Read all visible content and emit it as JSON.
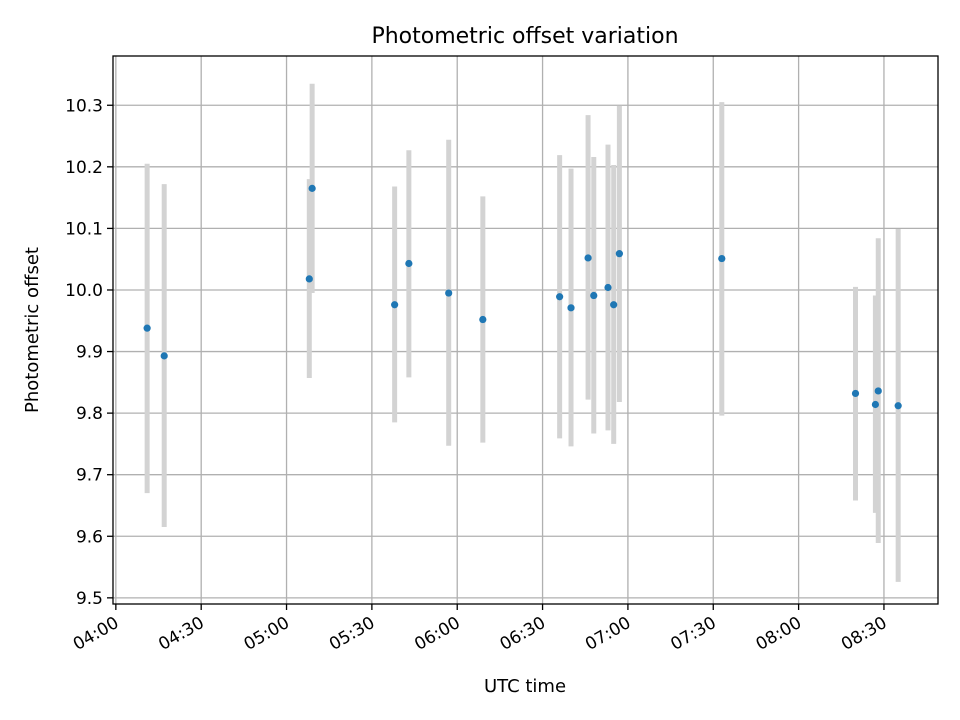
{
  "chart_data": {
    "type": "scatter",
    "title": "Photometric offset variation",
    "xlabel": "UTC time",
    "ylabel": "Photometric offset",
    "x_axis": {
      "scale": "time",
      "range": [
        "03:59",
        "08:49"
      ],
      "ticks": [
        "04:00",
        "04:30",
        "05:00",
        "05:30",
        "06:00",
        "06:30",
        "07:00",
        "07:30",
        "08:00",
        "08:30"
      ]
    },
    "y_axis": {
      "range": [
        9.49,
        10.38
      ],
      "ticks": [
        "9.5",
        "9.6",
        "9.7",
        "9.8",
        "9.9",
        "10.0",
        "10.1",
        "10.2",
        "10.3"
      ]
    },
    "grid": true,
    "marker_color": "#1f77b4",
    "errorbar_color": "#d3d3d3",
    "points": [
      {
        "x": "04:11",
        "y": 9.938,
        "yerr_low": 9.67,
        "yerr_high": 10.205
      },
      {
        "x": "04:17",
        "y": 9.893,
        "yerr_low": 9.615,
        "yerr_high": 10.172
      },
      {
        "x": "05:08",
        "y": 10.018,
        "yerr_low": 9.857,
        "yerr_high": 10.18
      },
      {
        "x": "05:09",
        "y": 10.165,
        "yerr_low": 9.995,
        "yerr_high": 10.335
      },
      {
        "x": "05:38",
        "y": 9.976,
        "yerr_low": 9.785,
        "yerr_high": 10.168
      },
      {
        "x": "05:43",
        "y": 10.043,
        "yerr_low": 9.858,
        "yerr_high": 10.227
      },
      {
        "x": "05:57",
        "y": 9.995,
        "yerr_low": 9.747,
        "yerr_high": 10.244
      },
      {
        "x": "06:09",
        "y": 9.952,
        "yerr_low": 9.752,
        "yerr_high": 10.152
      },
      {
        "x": "06:36",
        "y": 9.989,
        "yerr_low": 9.759,
        "yerr_high": 10.219
      },
      {
        "x": "06:40",
        "y": 9.971,
        "yerr_low": 9.746,
        "yerr_high": 10.197
      },
      {
        "x": "06:46",
        "y": 10.052,
        "yerr_low": 9.822,
        "yerr_high": 10.284
      },
      {
        "x": "06:48",
        "y": 9.991,
        "yerr_low": 9.767,
        "yerr_high": 10.216
      },
      {
        "x": "06:53",
        "y": 10.004,
        "yerr_low": 9.772,
        "yerr_high": 10.236
      },
      {
        "x": "06:55",
        "y": 9.976,
        "yerr_low": 9.75,
        "yerr_high": 10.203
      },
      {
        "x": "06:57",
        "y": 10.059,
        "yerr_low": 9.818,
        "yerr_high": 10.299
      },
      {
        "x": "07:33",
        "y": 10.051,
        "yerr_low": 9.796,
        "yerr_high": 10.305
      },
      {
        "x": "08:20",
        "y": 9.832,
        "yerr_low": 9.658,
        "yerr_high": 10.005
      },
      {
        "x": "08:27",
        "y": 9.814,
        "yerr_low": 9.638,
        "yerr_high": 9.991
      },
      {
        "x": "08:28",
        "y": 9.836,
        "yerr_low": 9.589,
        "yerr_high": 10.084
      },
      {
        "x": "08:35",
        "y": 9.812,
        "yerr_low": 9.526,
        "yerr_high": 10.099
      }
    ]
  }
}
